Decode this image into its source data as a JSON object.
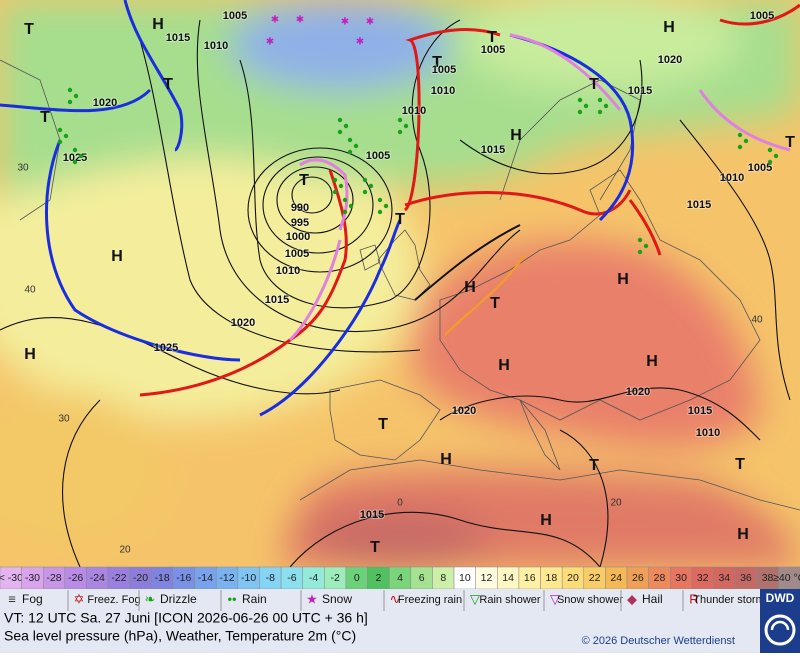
{
  "map": {
    "pressure_centers": [
      "H",
      "H",
      "T",
      "T",
      "T",
      "H",
      "T",
      "T",
      "H",
      "T",
      "H",
      "T",
      "H",
      "H",
      "H",
      "T",
      "H",
      "T",
      "T",
      "H",
      "H",
      "T",
      "T",
      "T",
      "T",
      "H"
    ],
    "isobar_labels": [
      "1005",
      "1015",
      "1010",
      "1020",
      "1025",
      "1005",
      "1010",
      "990",
      "995",
      "1000",
      "1005",
      "1010",
      "1015",
      "1020",
      "1025",
      "1020",
      "1020",
      "1015",
      "1010",
      "1015",
      "1005",
      "1010",
      "1005",
      "1015",
      "1020",
      "1015",
      "1015",
      "1010",
      "1005",
      "1005"
    ],
    "temperature_labels": [
      "40",
      "30",
      "20",
      "20",
      "0",
      "30",
      "40"
    ]
  },
  "scale": {
    "labels": [
      "< -30",
      "-30",
      "-28",
      "-26",
      "-24",
      "-22",
      "-20",
      "-18",
      "-16",
      "-14",
      "-12",
      "-10",
      "-8",
      "-6",
      "-4",
      "-2",
      "0",
      "2",
      "4",
      "6",
      "8",
      "10",
      "12",
      "14",
      "16",
      "18",
      "20",
      "22",
      "24",
      "26",
      "28",
      "30",
      "32",
      "34",
      "36",
      "38",
      "≥40 °C"
    ],
    "colors": [
      "#e4b4f0",
      "#d9a4ec",
      "#c896e6",
      "#b88ce6",
      "#a886e2",
      "#9a80de",
      "#8c7ed8",
      "#7f84de",
      "#7a92e6",
      "#78a2ec",
      "#7ab2f0",
      "#80c4f4",
      "#86d4f4",
      "#8ce0ee",
      "#94ead8",
      "#9cecbc",
      "#6cd27a",
      "#50c060",
      "#7ad47a",
      "#a4e292",
      "#ccf0aa",
      "#ffffff",
      "#fffce0",
      "#fff8c4",
      "#fff0a4",
      "#ffe890",
      "#fcdc78",
      "#f8cc66",
      "#f4b856",
      "#f0a056",
      "#ec8a5e",
      "#e67660",
      "#dc6a60",
      "#d26860",
      "#c46a66",
      "#b0726e",
      "#a08a8a"
    ]
  },
  "legend": {
    "items": [
      "Fog",
      "Freez. Fog",
      "Drizzle",
      "Rain",
      "Snow",
      "Freezing rain",
      "Rain shower",
      "Snow shower",
      "Hail",
      "Thunder storm"
    ]
  },
  "footer": {
    "valid_time": "VT: 12 UTC Sa.  27 Juni [ICON 2026-06-26  00 UTC + 36 h]",
    "description": "Sea level pressure (hPa), Weather, Temperature 2m (°C)",
    "copyright": "© 2026 Deutscher Wetterdienst",
    "logo": "DWD"
  }
}
